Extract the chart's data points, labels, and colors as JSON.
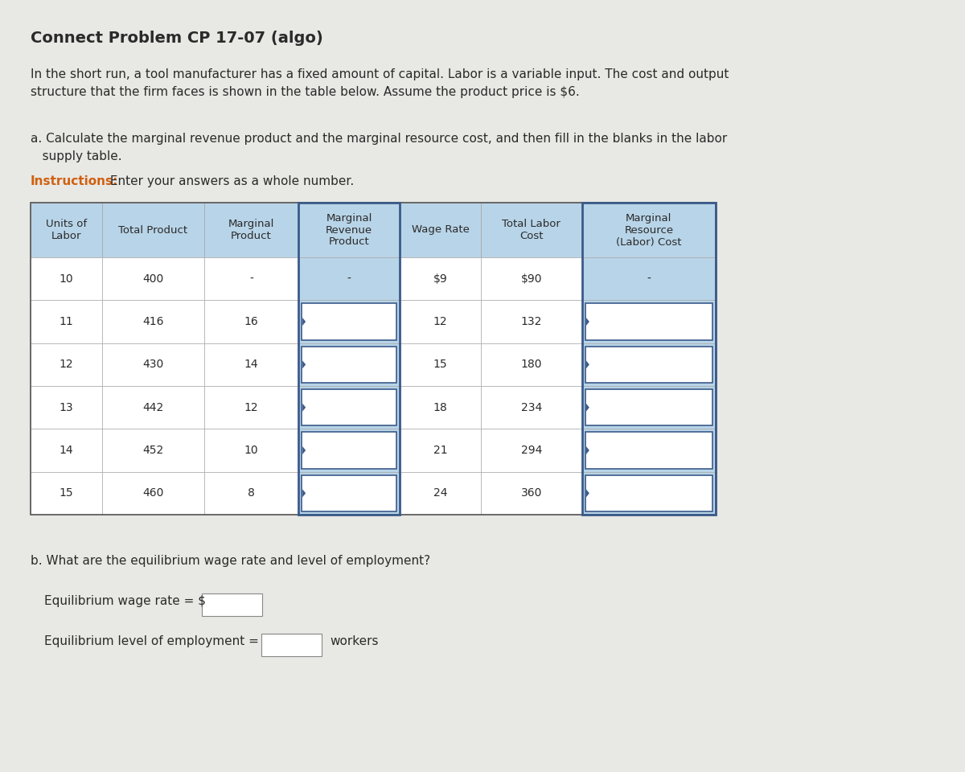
{
  "title": "Connect Problem CP 17-07 (algo)",
  "intro_text": "In the short run, a tool manufacturer has a fixed amount of capital. Labor is a variable input. The cost and output\nstructure that the firm faces is shown in the table below. Assume the product price is $6.",
  "part_a_label": "a. Calculate the marginal revenue product and the marginal resource cost, and then fill in the blanks in the labor\n   supply table.",
  "instructions_bold": "Instructions:",
  "instructions_rest": " Enter your answers as a whole number.",
  "part_b_label": "b. What are the equilibrium wage rate and level of employment?",
  "eq_wage_label": "Equilibrium wage rate = $",
  "eq_emp_label": "Equilibrium level of employment =",
  "workers_label": "workers",
  "col_headers": [
    "Units of\nLabor",
    "Total Product",
    "Marginal\nProduct",
    "Marginal\nRevenue\nProduct",
    "Wage Rate",
    "Total Labor\nCost",
    "Marginal\nResource\n(Labor) Cost"
  ],
  "rows": [
    [
      "10",
      "400",
      "-",
      "-",
      "$9",
      "$90",
      "-"
    ],
    [
      "11",
      "416",
      "16",
      "",
      "12",
      "132",
      ""
    ],
    [
      "12",
      "430",
      "14",
      "",
      "15",
      "180",
      ""
    ],
    [
      "13",
      "442",
      "12",
      "",
      "18",
      "234",
      ""
    ],
    [
      "14",
      "452",
      "10",
      "",
      "21",
      "294",
      ""
    ],
    [
      "15",
      "460",
      "8",
      "",
      "24",
      "360",
      ""
    ]
  ],
  "header_bg": "#b8d4e8",
  "row_bg": "#ffffff",
  "blank_col_bg": "#ffffff",
  "table_border_color": "#3a5a8a",
  "table_inner_color": "#aaaaaa",
  "bg_color": "#e8e8e4",
  "text_color": "#2a2a2a",
  "title_fontsize": 14,
  "body_fontsize": 11,
  "table_fontsize": 10,
  "instructions_color": "#d06010"
}
